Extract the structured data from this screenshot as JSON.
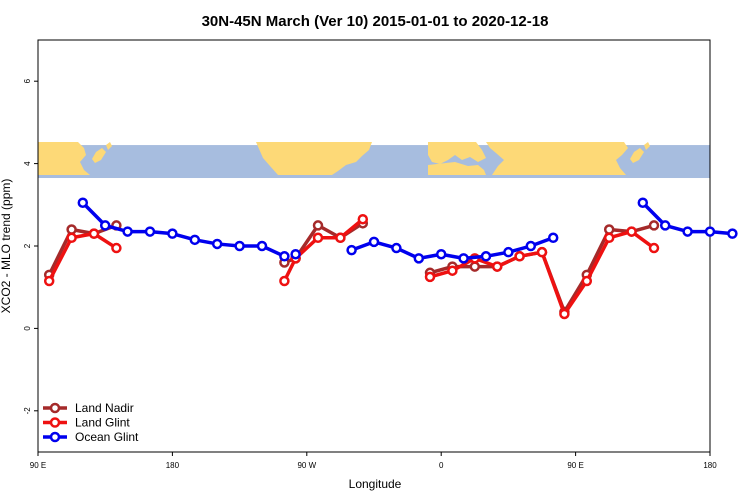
{
  "chart_data": {
    "type": "line",
    "title": "30N-45N March (Ver 10)   2015-01-01 to 2020-12-18",
    "xlabel": "Longitude",
    "ylabel": "XCO2 - MLO trend (ppm)",
    "xlim": [
      90,
      540
    ],
    "ylim": [
      -3,
      7
    ],
    "xticks": [
      {
        "value": 90,
        "label": "90 E"
      },
      {
        "value": 180,
        "label": "180"
      },
      {
        "value": 270,
        "label": "90 W"
      },
      {
        "value": 360,
        "label": "0"
      },
      {
        "value": 450,
        "label": "90 E"
      },
      {
        "value": 540,
        "label": "180"
      }
    ],
    "yticks": [
      {
        "value": -2,
        "label": "-2"
      },
      {
        "value": 0,
        "label": "0"
      },
      {
        "value": 2,
        "label": "2"
      },
      {
        "value": 4,
        "label": "4"
      },
      {
        "value": 6,
        "label": "6"
      }
    ],
    "map_band": {
      "y_range": [
        3.65,
        4.45
      ],
      "ocean_color": "#a7bddf",
      "land_color": "#fdd977"
    },
    "legend_position": "bottom-left",
    "series": [
      {
        "name": "Land Nadir",
        "color": "#a52a2a",
        "segments": [
          [
            [
              97.5,
              1.3
            ],
            [
              112.5,
              2.4
            ],
            [
              127.5,
              2.3
            ],
            [
              142.5,
              2.5
            ]
          ],
          [
            [
              255,
              1.6
            ],
            [
              262.5,
              1.7
            ],
            [
              277.5,
              2.5
            ],
            [
              292.5,
              2.2
            ],
            [
              307.5,
              2.55
            ]
          ],
          [
            [
              352.5,
              1.35
            ],
            [
              367.5,
              1.5
            ],
            [
              382.5,
              1.5
            ],
            [
              397.5,
              1.5
            ],
            [
              412.5,
              1.75
            ],
            [
              427.5,
              1.85
            ],
            [
              442.5,
              0.4
            ],
            [
              457.5,
              1.3
            ],
            [
              472.5,
              2.4
            ],
            [
              487.5,
              2.35
            ],
            [
              502.5,
              2.5
            ]
          ]
        ]
      },
      {
        "name": "Land Glint",
        "color": "#ee1111",
        "segments": [
          [
            [
              97.5,
              1.15
            ],
            [
              112.5,
              2.2
            ],
            [
              127.5,
              2.3
            ],
            [
              142.5,
              1.95
            ]
          ],
          [
            [
              255,
              1.15
            ],
            [
              262.5,
              1.7
            ],
            [
              277.5,
              2.2
            ],
            [
              292.5,
              2.2
            ],
            [
              307.5,
              2.65
            ]
          ],
          [
            [
              352.5,
              1.25
            ],
            [
              367.5,
              1.4
            ],
            [
              382.5,
              1.7
            ],
            [
              397.5,
              1.5
            ],
            [
              412.5,
              1.75
            ],
            [
              427.5,
              1.85
            ],
            [
              442.5,
              0.35
            ],
            [
              457.5,
              1.15
            ],
            [
              472.5,
              2.2
            ],
            [
              487.5,
              2.35
            ],
            [
              502.5,
              1.95
            ]
          ]
        ]
      },
      {
        "name": "Ocean Glint",
        "color": "#0000ee",
        "segments": [
          [
            [
              120,
              3.05
            ],
            [
              135,
              2.5
            ],
            [
              150,
              2.35
            ],
            [
              165,
              2.35
            ],
            [
              180,
              2.3
            ],
            [
              195,
              2.15
            ],
            [
              210,
              2.05
            ],
            [
              225,
              2.0
            ],
            [
              240,
              2.0
            ],
            [
              255,
              1.75
            ]
          ],
          [
            [
              262.5,
              1.8
            ]
          ],
          [
            [
              300,
              1.9
            ],
            [
              315,
              2.1
            ],
            [
              330,
              1.95
            ],
            [
              345,
              1.7
            ],
            [
              360,
              1.8
            ],
            [
              375,
              1.7
            ],
            [
              390,
              1.75
            ],
            [
              405,
              1.85
            ],
            [
              420,
              2.0
            ],
            [
              435,
              2.2
            ]
          ],
          [
            [
              495,
              3.05
            ],
            [
              510,
              2.5
            ],
            [
              525,
              2.35
            ],
            [
              540,
              2.35
            ],
            [
              555,
              2.3
            ]
          ]
        ]
      }
    ]
  }
}
